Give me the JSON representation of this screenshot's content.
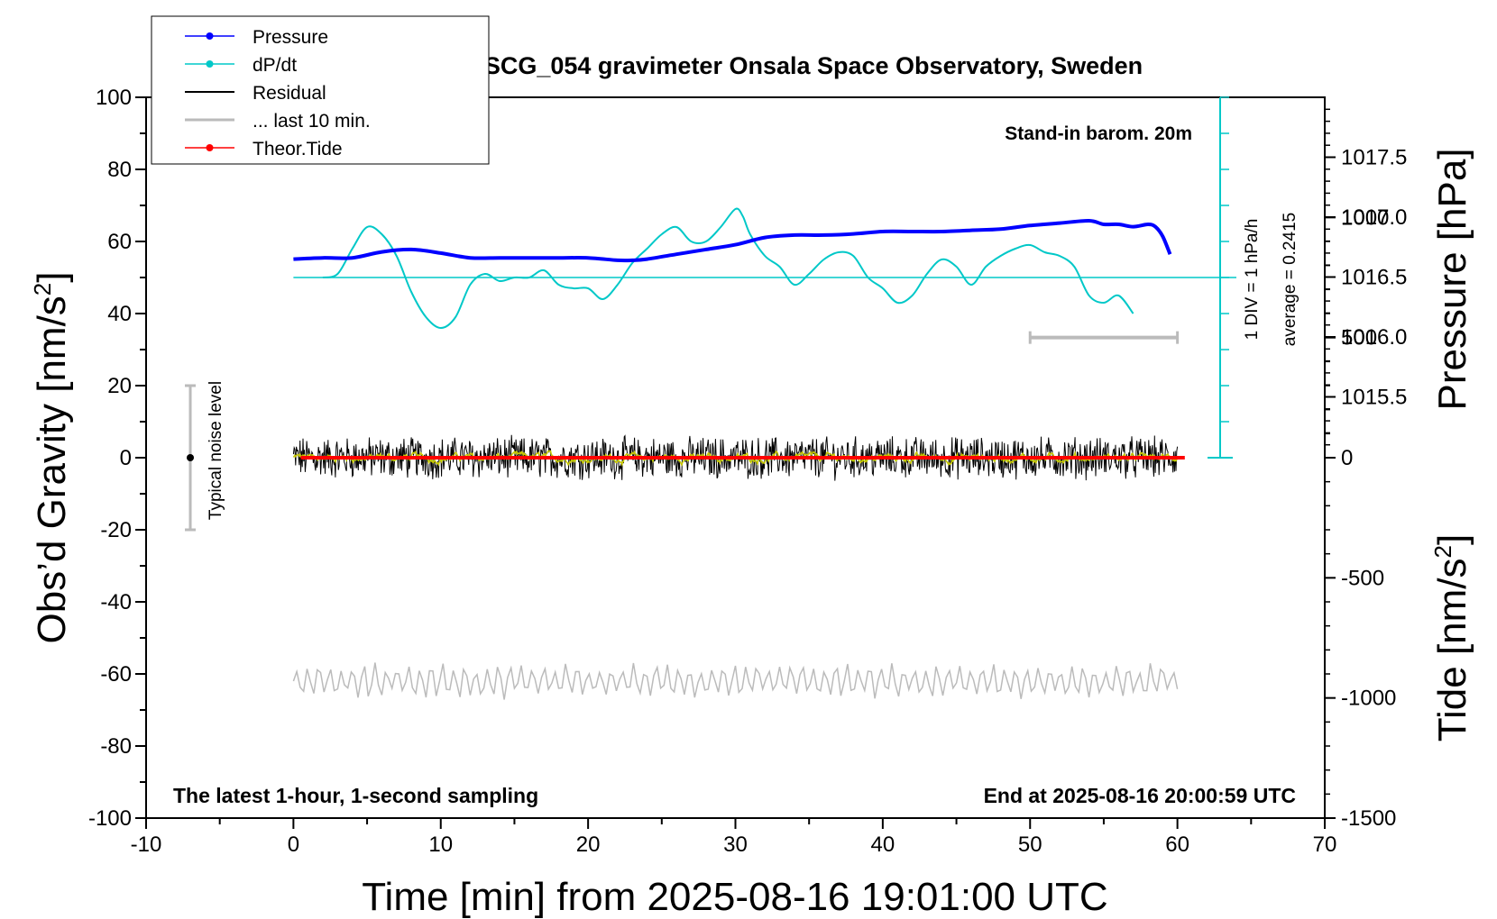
{
  "chart_data": {
    "type": "line",
    "title": "SCG_054 gravimeter Onsala Space Observatory, Sweden",
    "xlabel": "Time [min] from 2025-08-16 19:01:00 UTC",
    "ylabel_left": "Obs’d Gravity [nm/s",
    "ylabel_left_sup": "2",
    "ylabel_left_tail": "]",
    "ylabel_right_pressure": "Pressure [hPa]",
    "ylabel_right_tide": "Tide [nm/s",
    "ylabel_right_tide_sup": "2",
    "ylabel_right_tide_tail": "]",
    "xlim": [
      -10,
      70
    ],
    "ylim_left": [
      -100,
      100
    ],
    "ylim_tide": [
      -1500,
      1500
    ],
    "pressure_range_hpa": [
      1015.0,
      1018.0
    ],
    "x_ticks": [
      "-10",
      "0",
      "10",
      "20",
      "30",
      "40",
      "50",
      "60",
      "70"
    ],
    "y_ticks_left": [
      "-100",
      "-80",
      "-60",
      "-40",
      "-20",
      "0",
      "20",
      "40",
      "60",
      "80",
      "100"
    ],
    "y_ticks_pressure": [
      "1015.5",
      "1016.0",
      "1016.5",
      "1017.0",
      "1017.5"
    ],
    "y_ticks_tide": [
      "-1500",
      "-1000",
      "-500",
      "0",
      "500",
      "1000"
    ],
    "annotations": {
      "barometer": "Stand-in barom. 20m",
      "latest": "The latest 1-hour, 1-second sampling",
      "end": "End at 2025-08-16 20:00:59 UTC",
      "noise": "Typical noise level",
      "div": "1 DIV = 1 hPa/h",
      "average": "average = 0.2415"
    },
    "legend": {
      "position": "top-left",
      "entries": [
        {
          "label": "Pressure",
          "color": "#0000ff"
        },
        {
          "label": "dP/dt",
          "color": "#00c8c8"
        },
        {
          "label": "Residual",
          "color": "#000000"
        },
        {
          "label": "... last 10 min.",
          "color": "#bbbbbb"
        },
        {
          "label": "Theor.Tide",
          "color": "#ff0000"
        }
      ]
    },
    "series": [
      {
        "name": "Pressure",
        "unit": "hPa",
        "color": "#0000ff",
        "x": [
          0,
          2,
          4,
          6,
          8,
          10,
          12,
          14,
          16,
          18,
          20,
          22,
          23,
          24,
          26,
          28,
          30,
          32,
          34,
          36,
          38,
          40,
          42,
          44,
          46,
          48,
          50,
          52,
          54,
          55,
          56,
          57,
          58,
          58.5,
          59,
          59.5
        ],
        "values": [
          1016.65,
          1016.66,
          1016.66,
          1016.71,
          1016.73,
          1016.7,
          1016.66,
          1016.66,
          1016.66,
          1016.66,
          1016.66,
          1016.64,
          1016.64,
          1016.65,
          1016.69,
          1016.73,
          1016.77,
          1016.83,
          1016.85,
          1016.85,
          1016.86,
          1016.88,
          1016.88,
          1016.88,
          1016.89,
          1016.9,
          1016.93,
          1016.95,
          1016.97,
          1016.94,
          1016.94,
          1016.92,
          1016.94,
          1016.92,
          1016.84,
          1016.69
        ]
      },
      {
        "name": "dP/dt",
        "color": "#00c8c8",
        "baseline_x": [
          0,
          64
        ],
        "baseline_y": 50,
        "x": [
          2,
          3,
          4,
          5,
          6,
          7,
          8,
          9,
          10,
          11,
          12,
          13,
          14,
          15,
          16,
          17,
          18,
          19,
          20,
          21,
          22,
          23,
          24,
          25,
          26,
          27,
          28,
          29,
          30,
          30.5,
          31,
          32,
          33,
          34,
          35,
          36,
          37,
          38,
          39,
          40,
          41,
          42,
          43,
          44,
          45,
          46,
          47,
          48,
          49,
          50,
          51,
          52,
          53,
          54,
          55,
          56,
          57
        ],
        "values": [
          50,
          51,
          58,
          64,
          62,
          56,
          46,
          39,
          36,
          39,
          48,
          51,
          49,
          50,
          50,
          52,
          48,
          47,
          47,
          44,
          48,
          54,
          58,
          62,
          64,
          60,
          60,
          64,
          69,
          67,
          62,
          56,
          53,
          48,
          51,
          55,
          57,
          56,
          50,
          47,
          43,
          45,
          51,
          55,
          53,
          48,
          53,
          56,
          58,
          59,
          57,
          56,
          53,
          45,
          43,
          45,
          40
        ]
      },
      {
        "name": "Residual",
        "color": "#000000",
        "x_range": [
          0,
          60
        ],
        "amplitude_nm_s2": 5
      },
      {
        "name": "... last 10 min.",
        "color": "#bbbbbb",
        "x_range": [
          0,
          60
        ],
        "offset_nm_s2": -62,
        "amplitude_nm_s2": 4
      },
      {
        "name": "Theor.Tide",
        "color": "#ff0000",
        "x": [
          0.5,
          60.5
        ],
        "values": [
          0,
          0
        ]
      }
    ],
    "noise_bar": {
      "x": -7,
      "center": 0,
      "halfwidth": 20
    },
    "gray_range_bar": {
      "x": [
        50,
        60
      ],
      "tide_value": 500
    }
  }
}
